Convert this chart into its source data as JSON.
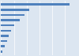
{
  "values": [
    550,
    230,
    190,
    150,
    105,
    80,
    60,
    48,
    32,
    12
  ],
  "bar_color": "#4f81bd",
  "background_color": "#dce6f1",
  "grid_color": "#ffffff",
  "xlim": [
    0,
    620
  ],
  "bar_height": 0.38,
  "figsize": [
    1.0,
    0.71
  ],
  "dpi": 100
}
